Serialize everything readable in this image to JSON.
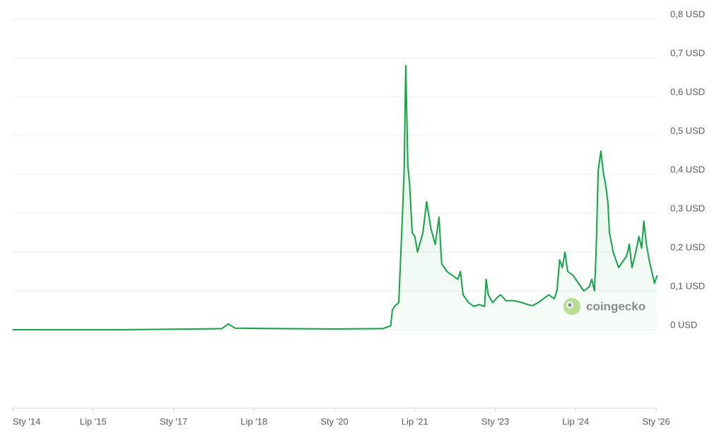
{
  "chart_data": {
    "type": "line",
    "color": "#14a345",
    "grid": true,
    "watermark": "coingecko",
    "x": [
      2014.0,
      2016.0,
      2017.5,
      2017.9,
      2018.02,
      2018.15,
      2019.0,
      2020.0,
      2020.9,
      2021.05,
      2021.08,
      2021.12,
      2021.2,
      2021.27,
      2021.3,
      2021.33,
      2021.37,
      2021.4,
      2021.45,
      2021.5,
      2021.55,
      2021.65,
      2021.72,
      2021.8,
      2021.88,
      2021.95,
      2022.0,
      2022.1,
      2022.2,
      2022.3,
      2022.35,
      2022.4,
      2022.5,
      2022.6,
      2022.7,
      2022.8,
      2022.83,
      2022.87,
      2022.95,
      2023.05,
      2023.1,
      2023.2,
      2023.35,
      2023.5,
      2023.6,
      2023.7,
      2023.8,
      2023.9,
      2024.0,
      2024.1,
      2024.15,
      2024.2,
      2024.25,
      2024.3,
      2024.35,
      2024.45,
      2024.55,
      2024.65,
      2024.75,
      2024.8,
      2024.85,
      2024.88,
      2024.92,
      2024.97,
      2025.02,
      2025.05,
      2025.1,
      2025.13,
      2025.2,
      2025.3,
      2025.35,
      2025.45,
      2025.5,
      2025.55,
      2025.62,
      2025.68,
      2025.73,
      2025.77,
      2025.82,
      2025.87,
      2025.92,
      2025.97,
      2026.02
    ],
    "values": [
      0.0,
      0.0,
      0.002,
      0.003,
      0.015,
      0.004,
      0.003,
      0.002,
      0.003,
      0.01,
      0.05,
      0.06,
      0.07,
      0.3,
      0.41,
      0.68,
      0.42,
      0.38,
      0.25,
      0.24,
      0.2,
      0.25,
      0.33,
      0.26,
      0.22,
      0.29,
      0.17,
      0.15,
      0.14,
      0.13,
      0.15,
      0.09,
      0.07,
      0.06,
      0.065,
      0.06,
      0.13,
      0.09,
      0.07,
      0.085,
      0.09,
      0.075,
      0.075,
      0.07,
      0.065,
      0.062,
      0.07,
      0.08,
      0.09,
      0.08,
      0.1,
      0.18,
      0.16,
      0.2,
      0.15,
      0.14,
      0.12,
      0.1,
      0.11,
      0.13,
      0.1,
      0.2,
      0.41,
      0.46,
      0.4,
      0.38,
      0.33,
      0.25,
      0.2,
      0.16,
      0.17,
      0.19,
      0.22,
      0.16,
      0.2,
      0.24,
      0.21,
      0.28,
      0.22,
      0.18,
      0.15,
      0.12,
      0.14
    ],
    "xlim": [
      2014.0,
      2026.0
    ],
    "xticks": [
      {
        "value": 2014.0,
        "label": "Sty '14"
      },
      {
        "value": 2015.5,
        "label": "Lip '15"
      },
      {
        "value": 2017.0,
        "label": "Sty '17"
      },
      {
        "value": 2018.5,
        "label": "Lip '18"
      },
      {
        "value": 2020.0,
        "label": "Sty '20"
      },
      {
        "value": 2021.5,
        "label": "Lip '21"
      },
      {
        "value": 2023.0,
        "label": "Sty '23"
      },
      {
        "value": 2024.5,
        "label": "Lip '24"
      },
      {
        "value": 2026.0,
        "label": "Sty '26"
      }
    ],
    "ylim": [
      0,
      0.8
    ],
    "yticks": [
      {
        "value": 0,
        "label": "0 USD"
      },
      {
        "value": 0.1,
        "label": "0,1 USD"
      },
      {
        "value": 0.2,
        "label": "0,2 USD"
      },
      {
        "value": 0.3,
        "label": "0,3 USD"
      },
      {
        "value": 0.4,
        "label": "0,4 USD"
      },
      {
        "value": 0.5,
        "label": "0,5 USD"
      },
      {
        "value": 0.6,
        "label": "0,6 USD"
      },
      {
        "value": 0.7,
        "label": "0,7 USD"
      },
      {
        "value": 0.8,
        "label": "0,8 USD"
      }
    ]
  }
}
